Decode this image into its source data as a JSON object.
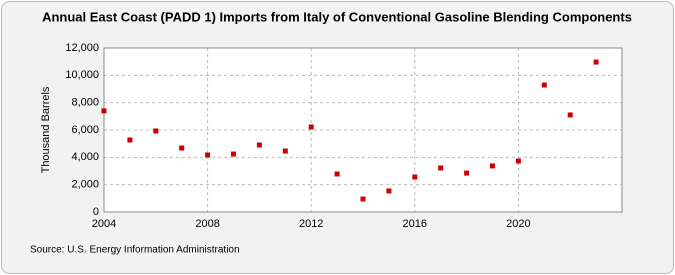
{
  "chart_data": {
    "type": "scatter",
    "title": "Annual East Coast (PADD 1) Imports from Italy of Conventional Gasoline Blending Components",
    "y_label": "Thousand Barrels",
    "source": "Source: U.S. Energy Information Administration",
    "x": [
      2004,
      2005,
      2006,
      2007,
      2008,
      2009,
      2010,
      2011,
      2012,
      2013,
      2014,
      2015,
      2016,
      2017,
      2018,
      2019,
      2020,
      2021,
      2022,
      2023
    ],
    "values": [
      7400,
      5270,
      5930,
      4680,
      4170,
      4240,
      4900,
      4460,
      6220,
      2780,
      950,
      1540,
      2560,
      3220,
      2850,
      3370,
      3730,
      9290,
      7100,
      10970
    ],
    "color": "#cc0000",
    "xlim": [
      2004,
      2024
    ],
    "xticks": [
      2004,
      2008,
      2012,
      2016,
      2020
    ],
    "ylim": [
      0,
      12000
    ],
    "yticks": [
      0,
      {
        "value": 2000,
        "label": "2,000"
      },
      {
        "value": 4000,
        "label": "4,000"
      },
      {
        "value": 6000,
        "label": "6,000"
      },
      {
        "value": 8000,
        "label": "8,000"
      },
      {
        "value": 10000,
        "label": "10,000"
      },
      {
        "value": 12000,
        "label": "12,000"
      }
    ],
    "grid": true
  }
}
